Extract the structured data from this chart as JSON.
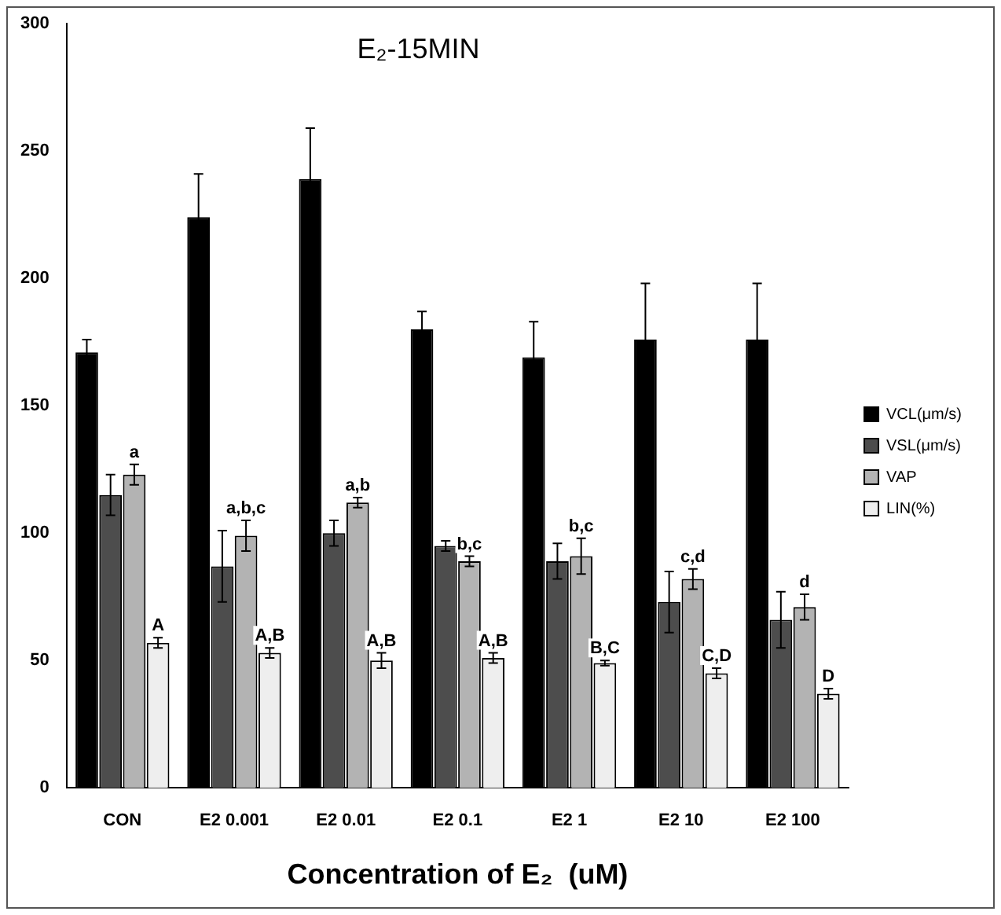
{
  "chart_data": {
    "type": "bar",
    "title": "E₂-15MIN",
    "xlabel": "Concentration of E₂  (uM)",
    "categories": [
      "CON",
      "E2 0.001",
      "E2 0.01",
      "E2 0.1",
      "E2 1",
      "E2 10",
      "E2 100"
    ],
    "series": [
      {
        "name": "VCL(μm/s)",
        "color": "#000000",
        "values": [
          171,
          224,
          239,
          180,
          169,
          176,
          176
        ],
        "errors": [
          5,
          17,
          20,
          7,
          14,
          22,
          22
        ]
      },
      {
        "name": "VSL(μm/s)",
        "color": "#4d4d4d",
        "values": [
          115,
          87,
          100,
          95,
          89,
          73,
          66
        ],
        "errors": [
          8,
          14,
          5,
          2,
          7,
          12,
          11
        ]
      },
      {
        "name": "VAP",
        "color": "#b3b3b3",
        "values": [
          123,
          99,
          112,
          89,
          91,
          82,
          71
        ],
        "errors": [
          4,
          6,
          2,
          2,
          7,
          4,
          5
        ]
      },
      {
        "name": "LIN(%)",
        "color": "#eeeeee",
        "values": [
          57,
          53,
          50,
          51,
          49,
          45,
          37
        ],
        "errors": [
          2,
          2,
          3,
          2,
          1,
          2,
          2
        ]
      }
    ],
    "ylim": [
      0,
      300
    ],
    "yticks": [
      0,
      50,
      100,
      150,
      200,
      250,
      300
    ],
    "grid": false,
    "legend": "right",
    "annotations": [
      {
        "text": "a",
        "x": "CON",
        "y": 127
      },
      {
        "text": "a,b,c",
        "x": "E2 0.001",
        "y": 105
      },
      {
        "text": "a,b",
        "x": "E2 0.01",
        "y": 114
      },
      {
        "text": "b,c",
        "x": "E2 0.1",
        "y": 91
      },
      {
        "text": "b,c",
        "x": "E2 1",
        "y": 98
      },
      {
        "text": "c,d",
        "x": "E2 10",
        "y": 86
      },
      {
        "text": "d",
        "x": "E2 100",
        "y": 76
      },
      {
        "text": "A",
        "x": "CON",
        "y": 59
      },
      {
        "text": "A,B",
        "x": "E2 0.001",
        "y": 55
      },
      {
        "text": "A,B",
        "x": "E2 0.01",
        "y": 53
      },
      {
        "text": "A,B",
        "x": "E2 0.1",
        "y": 53
      },
      {
        "text": "B,C",
        "x": "E2 1",
        "y": 50
      },
      {
        "text": "C,D",
        "x": "E2 10",
        "y": 47
      },
      {
        "text": "D",
        "x": "E2 100",
        "y": 39
      }
    ]
  }
}
